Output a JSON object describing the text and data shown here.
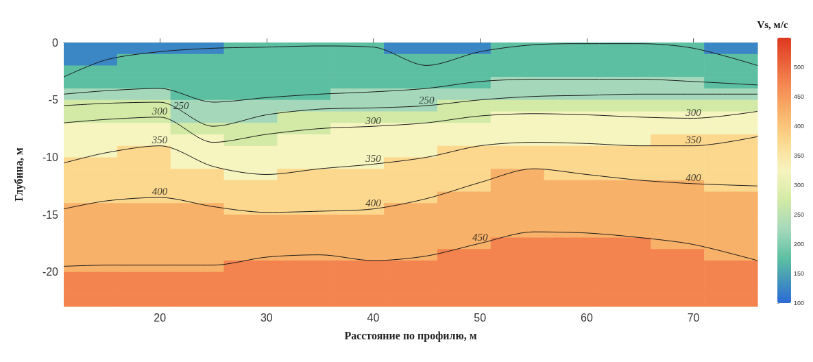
{
  "chart_data": {
    "type": "heatmap",
    "xlabel": "Расстояние по профилю, м",
    "ylabel": "Глубина, м",
    "clabel": "Vs, м/с",
    "x": [
      13.5,
      18.5,
      23.5,
      28.5,
      33.5,
      38.5,
      43.5,
      48.5,
      53.5,
      58.5,
      63.5,
      68.5,
      73.5
    ],
    "xlim": [
      11,
      76
    ],
    "xticks": [
      20,
      30,
      40,
      50,
      60,
      70
    ],
    "ylim": [
      -23,
      0
    ],
    "yticks": [
      0,
      -5,
      -10,
      -15,
      -20
    ],
    "clim": [
      100,
      550
    ],
    "cticks": [
      100,
      150,
      200,
      250,
      300,
      350,
      400,
      450,
      500
    ],
    "colors": [
      "#3b86c4",
      "#5cbfa2",
      "#a5d8bb",
      "#d3eaa6",
      "#f6f4bf",
      "#fbd88e",
      "#f8b169",
      "#f3834f",
      "#e5512f"
    ],
    "cells": [
      [
        125,
        125,
        125,
        175,
        175,
        175,
        125,
        125,
        175,
        175,
        175,
        175,
        125
      ],
      [
        125,
        175,
        175,
        175,
        175,
        175,
        175,
        175,
        175,
        175,
        175,
        175,
        175
      ],
      [
        175,
        175,
        175,
        175,
        175,
        175,
        175,
        175,
        175,
        175,
        175,
        175,
        175
      ],
      [
        175,
        175,
        175,
        175,
        175,
        175,
        175,
        175,
        225,
        225,
        225,
        225,
        175
      ],
      [
        225,
        225,
        175,
        175,
        175,
        225,
        225,
        225,
        225,
        225,
        225,
        225,
        225
      ],
      [
        275,
        275,
        225,
        225,
        225,
        225,
        225,
        275,
        275,
        275,
        275,
        275,
        275
      ],
      [
        275,
        275,
        225,
        225,
        275,
        275,
        275,
        275,
        325,
        325,
        325,
        325,
        325
      ],
      [
        325,
        325,
        275,
        275,
        275,
        325,
        325,
        325,
        325,
        325,
        325,
        325,
        325
      ],
      [
        325,
        325,
        325,
        275,
        325,
        325,
        325,
        325,
        325,
        325,
        325,
        375,
        375
      ],
      [
        325,
        375,
        325,
        325,
        325,
        325,
        325,
        375,
        375,
        375,
        375,
        375,
        375
      ],
      [
        375,
        375,
        325,
        325,
        325,
        325,
        375,
        375,
        375,
        375,
        375,
        375,
        375
      ],
      [
        375,
        375,
        375,
        325,
        375,
        375,
        375,
        375,
        425,
        375,
        375,
        375,
        375
      ],
      [
        375,
        375,
        375,
        375,
        375,
        375,
        375,
        375,
        425,
        425,
        425,
        425,
        375
      ],
      [
        375,
        375,
        375,
        375,
        375,
        375,
        375,
        425,
        425,
        425,
        425,
        425,
        425
      ],
      [
        425,
        425,
        425,
        375,
        375,
        375,
        425,
        425,
        425,
        425,
        425,
        425,
        425
      ],
      [
        425,
        425,
        425,
        425,
        425,
        425,
        425,
        425,
        425,
        425,
        425,
        425,
        425
      ],
      [
        425,
        425,
        425,
        425,
        425,
        425,
        425,
        425,
        425,
        425,
        425,
        425,
        425
      ],
      [
        425,
        425,
        425,
        425,
        425,
        425,
        425,
        425,
        475,
        475,
        475,
        425,
        425
      ],
      [
        425,
        425,
        425,
        425,
        425,
        425,
        425,
        475,
        475,
        475,
        475,
        475,
        425
      ],
      [
        425,
        425,
        425,
        475,
        475,
        475,
        475,
        475,
        475,
        475,
        475,
        475,
        475
      ],
      [
        475,
        475,
        475,
        475,
        475,
        475,
        475,
        475,
        475,
        475,
        475,
        475,
        475
      ],
      [
        475,
        475,
        475,
        475,
        475,
        475,
        475,
        475,
        475,
        475,
        475,
        475,
        475
      ],
      [
        475,
        475,
        475,
        475,
        475,
        475,
        475,
        475,
        475,
        475,
        475,
        475,
        475
      ]
    ],
    "series": [
      {
        "type": "line",
        "color": "#1a1a1a",
        "x": [
          11,
          15,
          20,
          25,
          30,
          35,
          40,
          45,
          50,
          55,
          60,
          65,
          70,
          76
        ],
        "values": [
          -3,
          -1.5,
          -0.8,
          -0.5,
          -0.4,
          -0.3,
          -0.4,
          -2,
          -0.8,
          -0.2,
          -0.1,
          -0.1,
          -0.5,
          -2
        ]
      },
      {
        "type": "line",
        "color": "#1a1a1a",
        "x": [
          11,
          15,
          20,
          25,
          30,
          35,
          40,
          45,
          50,
          55,
          60,
          65,
          70,
          76
        ],
        "values": [
          -4.5,
          -4.2,
          -4,
          -5.2,
          -4.8,
          -4.5,
          -4.3,
          -4,
          -3.4,
          -3.2,
          -3.2,
          -3.2,
          -3.4,
          -3.7
        ]
      },
      {
        "type": "line",
        "color": "#1a1a1a",
        "x": [
          11,
          15,
          20,
          25,
          30,
          35,
          40,
          45,
          50,
          55,
          60,
          65,
          70,
          76
        ],
        "values": [
          -5.5,
          -5.3,
          -5.2,
          -7.3,
          -6.3,
          -5.8,
          -5.7,
          -5.5,
          -5,
          -4.7,
          -4.6,
          -4.5,
          -4.5,
          -4.5
        ]
      },
      {
        "type": "line",
        "color": "#1a1a1a",
        "x": [
          11,
          15,
          20,
          25,
          30,
          35,
          40,
          45,
          50,
          55,
          60,
          65,
          70,
          76
        ],
        "values": [
          -7,
          -6.7,
          -6.5,
          -8.7,
          -8,
          -7.5,
          -7.3,
          -7,
          -6.4,
          -6.2,
          -6.3,
          -6.5,
          -6.6,
          -6
        ]
      },
      {
        "type": "line",
        "color": "#1a1a1a",
        "x": [
          11,
          15,
          20,
          25,
          30,
          35,
          40,
          45,
          50,
          55,
          60,
          65,
          70,
          76
        ],
        "values": [
          -10.5,
          -9.6,
          -9,
          -10.8,
          -11.5,
          -11,
          -10.6,
          -10,
          -9,
          -8.7,
          -8.8,
          -9,
          -9,
          -8.2
        ]
      },
      {
        "type": "line",
        "color": "#1a1a1a",
        "x": [
          11,
          15,
          20,
          25,
          30,
          35,
          40,
          45,
          50,
          55,
          60,
          65,
          70,
          76
        ],
        "values": [
          -14.5,
          -13.8,
          -13.5,
          -14.3,
          -14.8,
          -14.7,
          -14.5,
          -13.6,
          -12.2,
          -11,
          -11.5,
          -12,
          -12.3,
          -12.5
        ]
      },
      {
        "type": "line",
        "color": "#1a1a1a",
        "x": [
          11,
          15,
          20,
          25,
          30,
          35,
          40,
          45,
          50,
          55,
          60,
          65,
          70,
          76
        ],
        "values": [
          -19.5,
          -19.4,
          -19.4,
          -19.4,
          -18.7,
          -18.5,
          -19,
          -18.6,
          -17.5,
          -16.5,
          -16.6,
          -17,
          -17.6,
          -19
        ]
      }
    ],
    "annotations": [
      {
        "text": "250",
        "x": 22,
        "y": -6
      },
      {
        "text": "300",
        "x": 20,
        "y": -6.5
      },
      {
        "text": "350",
        "x": 20,
        "y": -9
      },
      {
        "text": "400",
        "x": 20,
        "y": -13.5
      },
      {
        "text": "250",
        "x": 45,
        "y": -5.5
      },
      {
        "text": "300",
        "x": 40,
        "y": -7.3
      },
      {
        "text": "350",
        "x": 40,
        "y": -10.6
      },
      {
        "text": "400",
        "x": 40,
        "y": -14.5
      },
      {
        "text": "450",
        "x": 50,
        "y": -17.5
      },
      {
        "text": "300",
        "x": 70,
        "y": -6.6
      },
      {
        "text": "350",
        "x": 70,
        "y": -9
      },
      {
        "text": "400",
        "x": 70,
        "y": -12.3
      }
    ]
  }
}
